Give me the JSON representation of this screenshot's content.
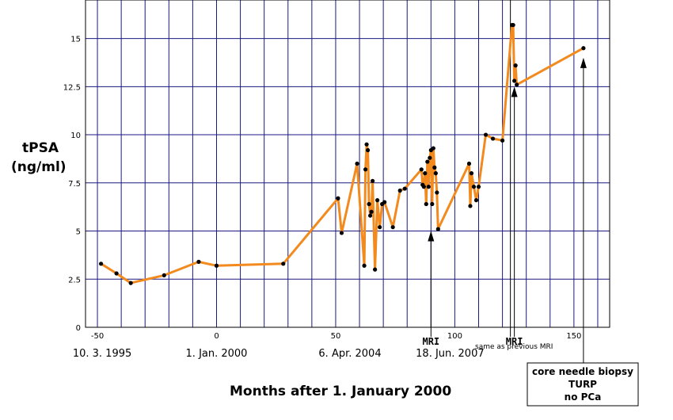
{
  "chart_data": {
    "type": "line",
    "ylabel_line1": "tPSA",
    "ylabel_line2": "(ng/ml)",
    "xlabel": "Months after 1. January 2000",
    "xlim": [
      -55,
      165
    ],
    "ylim": [
      0,
      17
    ],
    "xticks": [
      -50,
      0,
      50,
      100,
      150
    ],
    "yticks": [
      0,
      2.5,
      5,
      7.5,
      10,
      12.5,
      15
    ],
    "ytick_labels": [
      "0",
      "2.5",
      "5",
      "7.5",
      "10",
      "12.5",
      "15"
    ],
    "xtick_labels": [
      "-50",
      "0",
      "50",
      "100",
      "150"
    ],
    "grid": true,
    "line_color": "#f28a1e",
    "grid_color": "#1a1a80",
    "series": [
      {
        "x": [
          -48.5,
          -42,
          -36,
          -22,
          -7.5,
          0,
          28,
          51,
          52.5,
          59,
          62,
          62.5,
          63,
          63.5,
          64,
          64.5,
          65,
          65.5,
          66.5,
          67.5,
          68.5,
          69.5,
          70.5,
          74,
          77,
          79,
          86,
          86.5,
          87,
          87.5,
          88,
          88.5,
          89,
          89.5,
          90,
          90.5,
          91,
          91.5,
          92,
          92.5,
          93,
          106,
          106.5,
          107,
          108,
          109,
          110,
          113,
          116,
          120,
          124,
          124.5,
          125,
          125.5,
          126,
          154
        ],
        "y": [
          3.3,
          2.8,
          2.3,
          2.7,
          3.4,
          3.2,
          3.3,
          6.7,
          4.9,
          8.5,
          3.2,
          8.2,
          9.5,
          9.2,
          6.4,
          5.8,
          6.0,
          7.6,
          3.0,
          6.6,
          5.2,
          6.4,
          6.5,
          5.2,
          7.1,
          7.2,
          8.2,
          7.4,
          7.3,
          8.0,
          6.4,
          8.6,
          7.3,
          8.8,
          9.2,
          6.4,
          9.3,
          8.3,
          8.0,
          7.0,
          5.1,
          8.5,
          6.3,
          8.0,
          7.3,
          6.6,
          7.3,
          10.0,
          9.8,
          9.7,
          15.7,
          15.7,
          12.8,
          13.6,
          12.6,
          14.5
        ]
      }
    ],
    "date_labels": [
      {
        "x": -48,
        "text": "10. 3. 1995"
      },
      {
        "x": 0,
        "text": "1. Jan. 2000"
      },
      {
        "x": 56,
        "text": "6. Apr. 2004"
      },
      {
        "x": 98,
        "text": "18. Jun. 2007"
      }
    ],
    "mri_markers": [
      {
        "x": 90,
        "label": "MRI",
        "arrow_y": 5.0
      },
      {
        "x": 125,
        "label": "MRI",
        "arrow_y": 12.5
      }
    ],
    "annotation_same": "same as previous MRI",
    "annotation_box": [
      "core needle biopsy",
      "TURP",
      "no PCa"
    ],
    "annotation_box_x": 154,
    "annotation_box_arrow_y": 14.0
  }
}
